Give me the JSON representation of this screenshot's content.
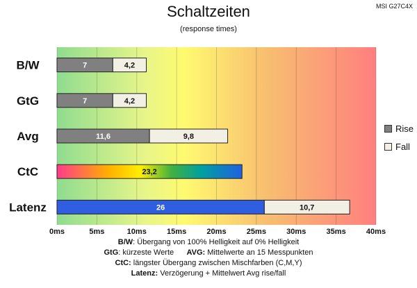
{
  "corner_label": "MSI G27C4X",
  "legend": {
    "rise": {
      "label": "Rise",
      "color": "#808080"
    },
    "fall": {
      "label": "Fall",
      "color": "#f2efe4"
    }
  },
  "footer": {
    "line1_key": "B/W",
    "line1_text": ":  Übergang von 100% Helligkeit auf 0% Helligkeit",
    "line2_key_a": "GtG",
    "line2_text_a": ": kürzeste  Werte",
    "line2_key_b": "AVG:",
    "line2_text_b": " Mittelwerte  an 15 Messpunkten",
    "line3_key": "CtC:",
    "line3_text": " längster Übergang  zwischen Mischfarben (C,M,Y)",
    "line4_key": "Latenz:",
    "line4_text": " Verzögerung  + Mittelwert Avg rise/fall"
  },
  "chart_data": {
    "type": "bar",
    "orientation": "horizontal",
    "stacked": true,
    "title": "Schaltzeiten",
    "subtitle": "(response times)",
    "xlim": [
      0,
      40
    ],
    "x_ticks": [
      "0ms",
      "5ms",
      "10ms",
      "15ms",
      "20ms",
      "25ms",
      "30ms",
      "35ms",
      "40ms"
    ],
    "categories": [
      "B/W",
      "GtG",
      "Avg",
      "CtC",
      "Latenz"
    ],
    "series": [
      {
        "name": "Rise",
        "values": [
          7,
          7,
          11.6,
          23.2,
          26
        ],
        "labels": [
          "7",
          "7",
          "11,6",
          "23,2",
          "26"
        ]
      },
      {
        "name": "Fall",
        "values": [
          4.2,
          4.2,
          9.8,
          null,
          10.7
        ],
        "labels": [
          "4,2",
          "4,2",
          "9,8",
          "",
          "10,7"
        ]
      }
    ],
    "special_colors": {
      "CtC": "rainbow",
      "Latenz": "#2f5fe0"
    },
    "background": "gradient green-yellow-red",
    "legend_position": "right"
  }
}
